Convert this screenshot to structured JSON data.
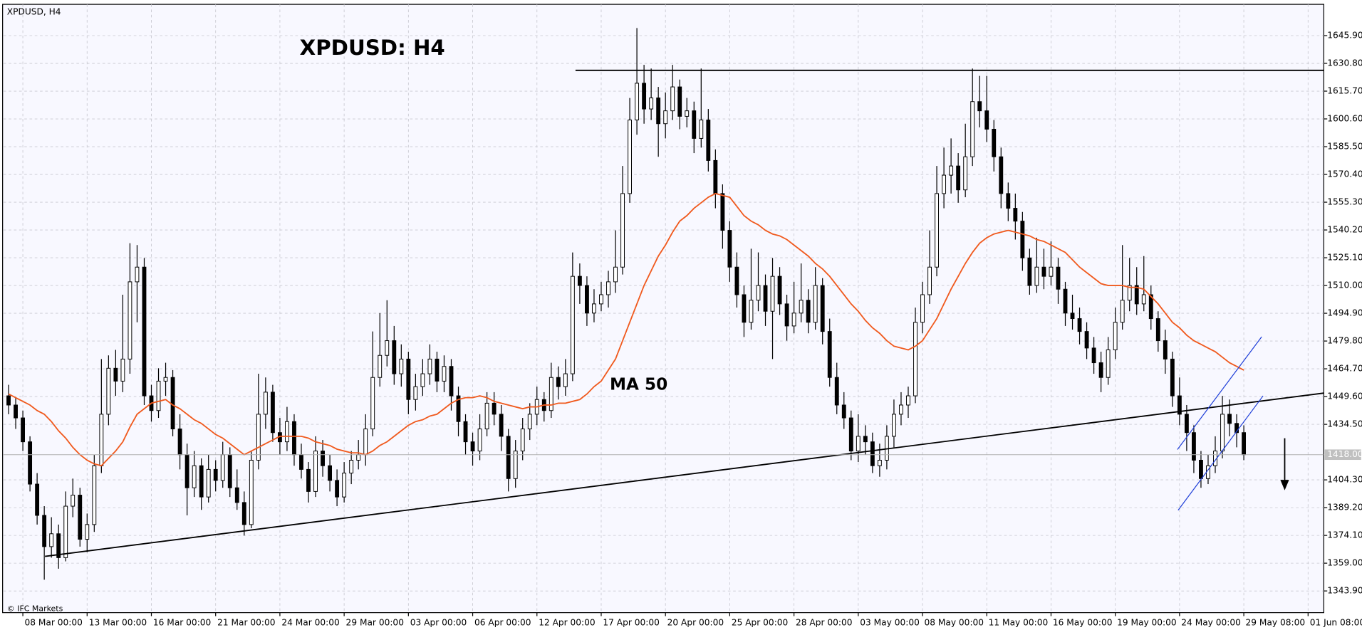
{
  "chart_data": {
    "type": "candlestick",
    "title": "XPDUSD: H4",
    "symbol_label": "XPDUSD, H4",
    "annotation": "MA 50",
    "watermark": "© IFC Markets",
    "up_color": "#ffffff",
    "down_color": "#000000",
    "grid": true,
    "xlim": [
      -1.2,
      184.2
    ],
    "ylim": [
      1332.1,
      1662.9
    ],
    "yticks": [
      {
        "value": 1343.9,
        "label": "1343.90"
      },
      {
        "value": 1359.0,
        "label": "1359.00"
      },
      {
        "value": 1374.1,
        "label": "1374.10"
      },
      {
        "value": 1389.2,
        "label": "1389.20"
      },
      {
        "value": 1404.3,
        "label": "1404.30"
      },
      {
        "value": 1434.5,
        "label": "1434.50"
      },
      {
        "value": 1449.6,
        "label": "1449.60"
      },
      {
        "value": 1464.7,
        "label": "1464.70"
      },
      {
        "value": 1479.8,
        "label": "1479.80"
      },
      {
        "value": 1494.9,
        "label": "1494.90"
      },
      {
        "value": 1510.0,
        "label": "1510.00"
      },
      {
        "value": 1525.1,
        "label": "1525.10"
      },
      {
        "value": 1540.2,
        "label": "1540.20"
      },
      {
        "value": 1555.3,
        "label": "1555.30"
      },
      {
        "value": 1570.4,
        "label": "1570.40"
      },
      {
        "value": 1585.5,
        "label": "1585.50"
      },
      {
        "value": 1600.6,
        "label": "1600.60"
      },
      {
        "value": 1615.7,
        "label": "1615.70"
      },
      {
        "value": 1630.8,
        "label": "1630.80"
      },
      {
        "value": 1645.9,
        "label": "1645.90"
      }
    ],
    "xticks": [
      {
        "value": 2,
        "label": "08 Mar 00:00"
      },
      {
        "value": 11,
        "label": "13 Mar 00:00"
      },
      {
        "value": 20,
        "label": "16 Mar 00:00"
      },
      {
        "value": 29,
        "label": "21 Mar 00:00"
      },
      {
        "value": 38,
        "label": "24 Mar 00:00"
      },
      {
        "value": 47,
        "label": "29 Mar 00:00"
      },
      {
        "value": 56,
        "label": "03 Apr 00:00"
      },
      {
        "value": 65,
        "label": "06 Apr 00:00"
      },
      {
        "value": 74,
        "label": "12 Apr 00:00"
      },
      {
        "value": 83,
        "label": "17 Apr 00:00"
      },
      {
        "value": 92,
        "label": "20 Apr 00:00"
      },
      {
        "value": 101,
        "label": "25 Apr 00:00"
      },
      {
        "value": 110,
        "label": "28 Apr 00:00"
      },
      {
        "value": 119,
        "label": "03 May 00:00"
      },
      {
        "value": 128,
        "label": "08 May 00:00"
      },
      {
        "value": 137,
        "label": "11 May 00:00"
      },
      {
        "value": 146,
        "label": "16 May 00:00"
      },
      {
        "value": 155,
        "label": "19 May 00:00"
      },
      {
        "value": 164,
        "label": "24 May 00:00"
      },
      {
        "value": 173,
        "label": "29 May 08:00"
      },
      {
        "value": 182,
        "label": "01 Jun 08:00"
      }
    ],
    "current_price": {
      "value": 1418,
      "label": "1418.00"
    },
    "lines": [
      {
        "color": "#000000",
        "x": [
          5.1,
          184.2
        ],
        "y": [
          1362.7,
          1451.5
        ]
      },
      {
        "color": "#000000",
        "x": [
          79.4,
          184.2
        ],
        "y": [
          1627,
          1627
        ]
      },
      {
        "color": "#1f3fd8",
        "x": [
          163.7,
          175.5
        ],
        "y": [
          1420.8,
          1482.1
        ]
      },
      {
        "color": "#1f3fd8",
        "x": [
          163.8,
          175.7
        ],
        "y": [
          1387.8,
          1450
        ]
      }
    ],
    "ma": {
      "color": "#f05a1e",
      "values": [
        1451,
        1449,
        1447,
        1445,
        1442,
        1440,
        1436,
        1431,
        1427,
        1422,
        1418,
        1415,
        1413,
        1412,
        1416,
        1420,
        1425,
        1433,
        1440,
        1443,
        1446,
        1447,
        1448,
        1445,
        1443,
        1440,
        1437,
        1435,
        1432,
        1429,
        1427,
        1424,
        1421,
        1418,
        1420,
        1422,
        1424,
        1426,
        1428,
        1428,
        1428,
        1428,
        1427,
        1425,
        1424,
        1423,
        1421,
        1420,
        1419,
        1419,
        1418,
        1420,
        1423,
        1425,
        1428,
        1431,
        1434,
        1436,
        1437,
        1439,
        1440,
        1443,
        1446,
        1448,
        1449,
        1449,
        1450,
        1449,
        1447,
        1446,
        1445,
        1444,
        1443,
        1444,
        1444,
        1445,
        1445,
        1446,
        1446,
        1447,
        1448,
        1451,
        1455,
        1458,
        1464,
        1470,
        1480,
        1490,
        1500,
        1510,
        1518,
        1526,
        1532,
        1539,
        1545,
        1548,
        1552,
        1555,
        1558,
        1560,
        1559,
        1558,
        1553,
        1548,
        1545,
        1543,
        1540,
        1538,
        1537,
        1535,
        1532,
        1529,
        1526,
        1522,
        1519,
        1515,
        1510,
        1505,
        1500,
        1496,
        1491,
        1487,
        1484,
        1480,
        1477,
        1476,
        1475,
        1477,
        1480,
        1486,
        1492,
        1500,
        1508,
        1515,
        1522,
        1528,
        1533,
        1536,
        1538,
        1539,
        1540,
        1539,
        1538,
        1537,
        1535,
        1534,
        1532,
        1530,
        1528,
        1524,
        1520,
        1517,
        1514,
        1511,
        1510,
        1510,
        1510,
        1509,
        1509,
        1508,
        1504,
        1500,
        1495,
        1490,
        1487,
        1483,
        1480,
        1478,
        1476,
        1474,
        1471,
        1468,
        1466,
        1464
      ]
    },
    "candles": [
      [
        1450,
        1456,
        1440,
        1445
      ],
      [
        1445,
        1449,
        1432,
        1438
      ],
      [
        1438,
        1442,
        1420,
        1425
      ],
      [
        1425,
        1428,
        1398,
        1402
      ],
      [
        1402,
        1408,
        1380,
        1385
      ],
      [
        1385,
        1390,
        1350,
        1368
      ],
      [
        1368,
        1384,
        1362,
        1375
      ],
      [
        1375,
        1380,
        1356,
        1362
      ],
      [
        1362,
        1398,
        1360,
        1390
      ],
      [
        1390,
        1405,
        1384,
        1396
      ],
      [
        1396,
        1400,
        1368,
        1372
      ],
      [
        1372,
        1386,
        1365,
        1380
      ],
      [
        1380,
        1418,
        1376,
        1412
      ],
      [
        1412,
        1470,
        1408,
        1440
      ],
      [
        1440,
        1472,
        1434,
        1465
      ],
      [
        1465,
        1475,
        1450,
        1458
      ],
      [
        1458,
        1505,
        1452,
        1470
      ],
      [
        1470,
        1533,
        1462,
        1512
      ],
      [
        1512,
        1532,
        1490,
        1520
      ],
      [
        1520,
        1525,
        1445,
        1450
      ],
      [
        1450,
        1456,
        1436,
        1442
      ],
      [
        1442,
        1465,
        1438,
        1458
      ],
      [
        1458,
        1468,
        1450,
        1460
      ],
      [
        1460,
        1464,
        1428,
        1432
      ],
      [
        1432,
        1440,
        1410,
        1418
      ],
      [
        1418,
        1424,
        1385,
        1400
      ],
      [
        1400,
        1420,
        1395,
        1412
      ],
      [
        1412,
        1416,
        1388,
        1395
      ],
      [
        1395,
        1418,
        1392,
        1410
      ],
      [
        1410,
        1415,
        1398,
        1404
      ],
      [
        1404,
        1425,
        1400,
        1418
      ],
      [
        1418,
        1422,
        1395,
        1400
      ],
      [
        1400,
        1410,
        1388,
        1392
      ],
      [
        1392,
        1398,
        1374,
        1380
      ],
      [
        1380,
        1420,
        1378,
        1415
      ],
      [
        1415,
        1462,
        1410,
        1440
      ],
      [
        1440,
        1460,
        1432,
        1452
      ],
      [
        1452,
        1456,
        1425,
        1430
      ],
      [
        1430,
        1438,
        1418,
        1425
      ],
      [
        1425,
        1444,
        1420,
        1436
      ],
      [
        1436,
        1440,
        1412,
        1418
      ],
      [
        1418,
        1424,
        1405,
        1410
      ],
      [
        1410,
        1414,
        1392,
        1398
      ],
      [
        1398,
        1428,
        1395,
        1420
      ],
      [
        1420,
        1426,
        1406,
        1412
      ],
      [
        1412,
        1418,
        1398,
        1404
      ],
      [
        1404,
        1410,
        1390,
        1395
      ],
      [
        1395,
        1414,
        1392,
        1408
      ],
      [
        1408,
        1420,
        1402,
        1415
      ],
      [
        1415,
        1426,
        1410,
        1418
      ],
      [
        1418,
        1440,
        1412,
        1432
      ],
      [
        1432,
        1485,
        1428,
        1460
      ],
      [
        1460,
        1495,
        1455,
        1472
      ],
      [
        1472,
        1502,
        1466,
        1480
      ],
      [
        1480,
        1488,
        1456,
        1462
      ],
      [
        1462,
        1478,
        1455,
        1470
      ],
      [
        1470,
        1474,
        1440,
        1448
      ],
      [
        1448,
        1462,
        1442,
        1455
      ],
      [
        1455,
        1470,
        1450,
        1462
      ],
      [
        1462,
        1478,
        1456,
        1470
      ],
      [
        1470,
        1474,
        1452,
        1458
      ],
      [
        1458,
        1472,
        1452,
        1466
      ],
      [
        1466,
        1470,
        1442,
        1450
      ],
      [
        1450,
        1455,
        1428,
        1436
      ],
      [
        1436,
        1440,
        1418,
        1425
      ],
      [
        1425,
        1430,
        1412,
        1420
      ],
      [
        1420,
        1440,
        1415,
        1432
      ],
      [
        1432,
        1452,
        1428,
        1446
      ],
      [
        1446,
        1452,
        1434,
        1440
      ],
      [
        1440,
        1445,
        1420,
        1428
      ],
      [
        1428,
        1432,
        1398,
        1405
      ],
      [
        1405,
        1426,
        1400,
        1420
      ],
      [
        1420,
        1438,
        1415,
        1432
      ],
      [
        1432,
        1446,
        1426,
        1440
      ],
      [
        1440,
        1455,
        1434,
        1448
      ],
      [
        1448,
        1452,
        1436,
        1442
      ],
      [
        1442,
        1468,
        1438,
        1460
      ],
      [
        1460,
        1466,
        1448,
        1455
      ],
      [
        1455,
        1470,
        1450,
        1462
      ],
      [
        1462,
        1528,
        1458,
        1515
      ],
      [
        1515,
        1522,
        1500,
        1510
      ],
      [
        1510,
        1515,
        1488,
        1495
      ],
      [
        1495,
        1508,
        1490,
        1500
      ],
      [
        1500,
        1512,
        1496,
        1505
      ],
      [
        1505,
        1518,
        1498,
        1512
      ],
      [
        1512,
        1540,
        1506,
        1520
      ],
      [
        1520,
        1575,
        1516,
        1560
      ],
      [
        1560,
        1612,
        1555,
        1600
      ],
      [
        1600,
        1650,
        1592,
        1620
      ],
      [
        1620,
        1630,
        1598,
        1606
      ],
      [
        1606,
        1628,
        1600,
        1612
      ],
      [
        1612,
        1618,
        1580,
        1598
      ],
      [
        1598,
        1615,
        1590,
        1605
      ],
      [
        1605,
        1630,
        1600,
        1618
      ],
      [
        1618,
        1622,
        1595,
        1602
      ],
      [
        1602,
        1612,
        1596,
        1605
      ],
      [
        1605,
        1610,
        1582,
        1590
      ],
      [
        1590,
        1628,
        1585,
        1600
      ],
      [
        1600,
        1606,
        1572,
        1578
      ],
      [
        1578,
        1584,
        1552,
        1560
      ],
      [
        1560,
        1565,
        1530,
        1540
      ],
      [
        1540,
        1545,
        1512,
        1520
      ],
      [
        1520,
        1528,
        1498,
        1505
      ],
      [
        1505,
        1510,
        1482,
        1490
      ],
      [
        1490,
        1530,
        1486,
        1502
      ],
      [
        1502,
        1528,
        1496,
        1510
      ],
      [
        1510,
        1516,
        1488,
        1496
      ],
      [
        1496,
        1525,
        1470,
        1515
      ],
      [
        1515,
        1520,
        1494,
        1500
      ],
      [
        1500,
        1505,
        1480,
        1488
      ],
      [
        1488,
        1512,
        1484,
        1495
      ],
      [
        1495,
        1522,
        1490,
        1502
      ],
      [
        1502,
        1508,
        1484,
        1490
      ],
      [
        1490,
        1520,
        1486,
        1510
      ],
      [
        1510,
        1514,
        1478,
        1485
      ],
      [
        1485,
        1492,
        1455,
        1460
      ],
      [
        1460,
        1468,
        1440,
        1445
      ],
      [
        1445,
        1452,
        1432,
        1438
      ],
      [
        1438,
        1442,
        1415,
        1420
      ],
      [
        1420,
        1440,
        1414,
        1428
      ],
      [
        1428,
        1434,
        1418,
        1425
      ],
      [
        1425,
        1430,
        1408,
        1412
      ],
      [
        1412,
        1424,
        1406,
        1415
      ],
      [
        1415,
        1434,
        1410,
        1428
      ],
      [
        1428,
        1448,
        1422,
        1440
      ],
      [
        1440,
        1452,
        1434,
        1445
      ],
      [
        1445,
        1455,
        1438,
        1450
      ],
      [
        1450,
        1498,
        1446,
        1490
      ],
      [
        1490,
        1512,
        1484,
        1505
      ],
      [
        1505,
        1540,
        1500,
        1520
      ],
      [
        1520,
        1575,
        1515,
        1560
      ],
      [
        1560,
        1585,
        1552,
        1570
      ],
      [
        1570,
        1590,
        1560,
        1575
      ],
      [
        1575,
        1582,
        1555,
        1562
      ],
      [
        1562,
        1598,
        1558,
        1580
      ],
      [
        1580,
        1628,
        1575,
        1610
      ],
      [
        1610,
        1624,
        1596,
        1605
      ],
      [
        1605,
        1624,
        1588,
        1595
      ],
      [
        1595,
        1600,
        1572,
        1580
      ],
      [
        1580,
        1585,
        1552,
        1560
      ],
      [
        1560,
        1566,
        1545,
        1552
      ],
      [
        1552,
        1560,
        1535,
        1545
      ],
      [
        1545,
        1550,
        1518,
        1525
      ],
      [
        1525,
        1530,
        1505,
        1510
      ],
      [
        1510,
        1536,
        1506,
        1520
      ],
      [
        1520,
        1530,
        1508,
        1515
      ],
      [
        1515,
        1534,
        1510,
        1520
      ],
      [
        1520,
        1525,
        1500,
        1508
      ],
      [
        1508,
        1512,
        1488,
        1495
      ],
      [
        1495,
        1505,
        1486,
        1492
      ],
      [
        1492,
        1498,
        1478,
        1485
      ],
      [
        1485,
        1490,
        1470,
        1476
      ],
      [
        1476,
        1482,
        1462,
        1468
      ],
      [
        1468,
        1474,
        1452,
        1460
      ],
      [
        1460,
        1482,
        1456,
        1475
      ],
      [
        1475,
        1498,
        1470,
        1490
      ],
      [
        1490,
        1532,
        1486,
        1502
      ],
      [
        1502,
        1525,
        1496,
        1510
      ],
      [
        1510,
        1520,
        1494,
        1500
      ],
      [
        1500,
        1526,
        1496,
        1505
      ],
      [
        1505,
        1510,
        1486,
        1492
      ],
      [
        1492,
        1496,
        1474,
        1480
      ],
      [
        1480,
        1486,
        1462,
        1470
      ],
      [
        1470,
        1474,
        1444,
        1450
      ],
      [
        1450,
        1460,
        1434,
        1440
      ],
      [
        1440,
        1445,
        1420,
        1430
      ],
      [
        1430,
        1434,
        1408,
        1415
      ],
      [
        1415,
        1420,
        1400,
        1405
      ],
      [
        1405,
        1418,
        1402,
        1412
      ],
      [
        1412,
        1428,
        1408,
        1420
      ],
      [
        1420,
        1450,
        1416,
        1440
      ],
      [
        1440,
        1448,
        1428,
        1435
      ],
      [
        1435,
        1440,
        1422,
        1430
      ],
      [
        1430,
        1434,
        1415,
        1418
      ]
    ]
  }
}
